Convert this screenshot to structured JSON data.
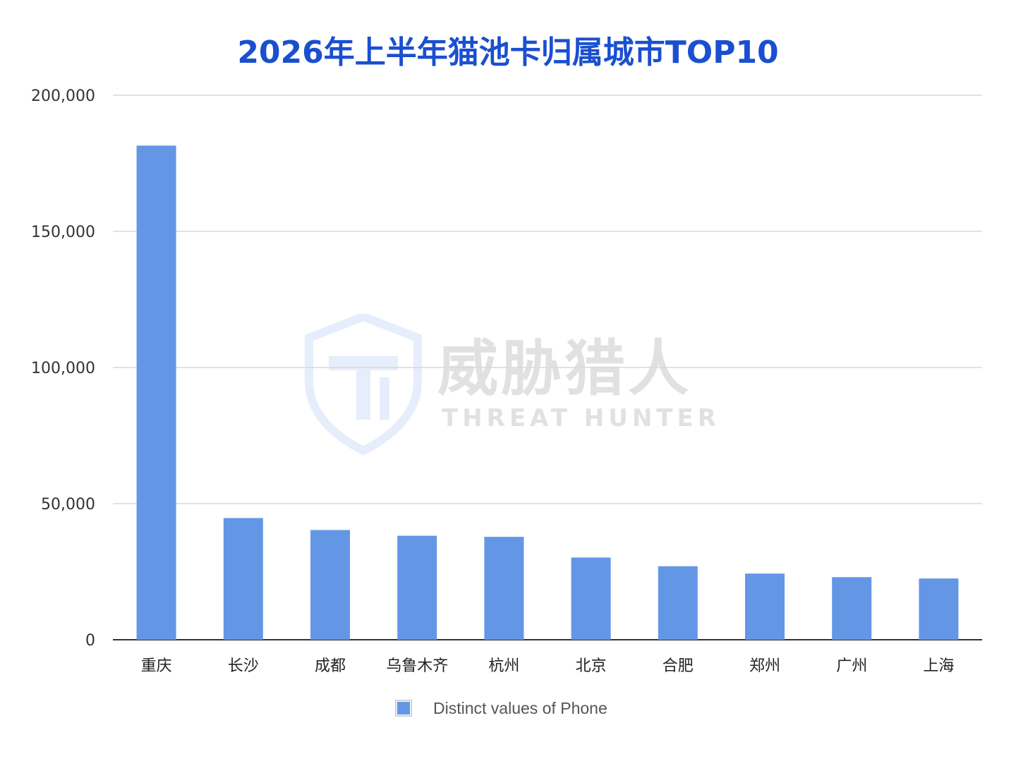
{
  "title": "2026年上半年猫池卡归属城市TOP10",
  "watermark": {
    "cn_text": "威胁猎人",
    "en_text": "THREAT HUNTER",
    "logo_icon": "shield-th-logo-icon"
  },
  "colors": {
    "title": "#1a4fd0",
    "bar": "#6397e6",
    "grid": "#d9d9d9",
    "axis": "#333333",
    "watermark_logo": "#e6edfb"
  },
  "chart_data": {
    "type": "bar",
    "title": "2026年上半年猫池卡归属城市TOP10",
    "xlabel": "",
    "ylabel": "",
    "categories": [
      "重庆",
      "长沙",
      "成都",
      "乌鲁木齐",
      "杭州",
      "北京",
      "合肥",
      "郑州",
      "广州",
      "上海"
    ],
    "series": [
      {
        "name": "Distinct values of Phone",
        "values": [
          181500,
          44700,
          40300,
          38200,
          37800,
          30200,
          27000,
          24300,
          23000,
          22500
        ]
      }
    ],
    "ylim": [
      0,
      200000
    ],
    "yticks": [
      0,
      50000,
      100000,
      150000,
      200000
    ],
    "ytick_labels": [
      "0",
      "50,000",
      "100,000",
      "150,000",
      "200,000"
    ],
    "grid": true,
    "legend_position": "bottom"
  },
  "legend": {
    "label": "Distinct values of Phone"
  }
}
